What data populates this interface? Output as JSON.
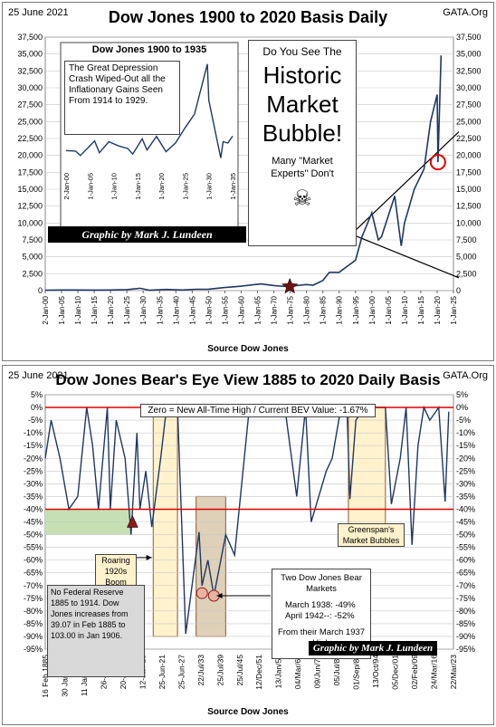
{
  "top": {
    "date": "25 June 2021",
    "site": "GATA.Org",
    "title": "Dow Jones 1900 to 2020 Basis Daily",
    "source": "Source Dow Jones",
    "credit": "Graphic by Mark J. Lundeen",
    "inset_title": "Dow Jones 1900 to 1935",
    "inset_note": "The Great Depression Crash Wiped-Out all the Inflationary Gains Seen From 1914 to 1929.",
    "callout": {
      "line1": "Do You See The",
      "line2": "Historic",
      "line3": "Market",
      "line4": "Bubble!",
      "line5": "Many \"Market Experts\"  Don't",
      "skull": "☠"
    }
  },
  "bottom": {
    "date": "25 June 2021",
    "site": "GATA.Org",
    "title": "Dow Jones Bear's Eye View 1885 to 2020 Daily Basis",
    "source": "Source Dow Jones",
    "credit": "Graphic by Mark J. Lundeen",
    "header_note": "Zero = New All-Time High / Current BEV Value: -1.67%",
    "roaring": "Roaring 1920s Boom",
    "greenspan": "Greenspan's Market Bubbles",
    "fed_note": "No Federal Reserve 1885 to 1914.  Dow Jones increases from 39.07 in Feb 1885 to 103.00 in Jan 1906.",
    "bear_title": "Two Dow Jones Bear Markets",
    "bear_line1": "March 1938:  -49%",
    "bear_line2": "April 1942--: -52%",
    "bear_line3": "From their March 1937 High"
  },
  "colors": {
    "series": "#1f3864",
    "panel_bg": "#fff2cc",
    "red": "#e00000",
    "shade": "#c8b08a",
    "green": "#c6e0b4",
    "grid": "#c8c8c8"
  },
  "chart_data": [
    {
      "type": "line",
      "title": "Dow Jones 1900 to 2020 Basis Daily",
      "xlabel": "Source Dow Jones",
      "ylim": [
        0,
        37500
      ],
      "y_ticks": [
        "0",
        "2,500",
        "5,000",
        "7,500",
        "10,000",
        "12,500",
        "15,000",
        "17,500",
        "20,000",
        "22,500",
        "25,000",
        "27,500",
        "30,000",
        "32,500",
        "35,000",
        "37,500"
      ],
      "x_ticks": [
        "2-Jan-00",
        "1-Jan-05",
        "1-Jan-10",
        "1-Jan-15",
        "1-Jan-20",
        "1-Jan-25",
        "1-Jan-30",
        "1-Jan-35",
        "1-Jan-40",
        "1-Jan-45",
        "1-Jan-50",
        "1-Jan-55",
        "1-Jan-60",
        "1-Jan-65",
        "1-Jan-70",
        "1-Jan-75",
        "1-Jan-80",
        "1-Jan-85",
        "1-Jan-90",
        "1-Jan-95",
        "1-Jan-00",
        "1-Jan-05",
        "1-Jan-10",
        "1-Jan-15",
        "1-Jan-20",
        "1-Jan-25"
      ],
      "series": [
        {
          "x": [
            1900,
            1905,
            1910,
            1915,
            1920,
            1925,
            1929,
            1932,
            1937,
            1942,
            1946,
            1950,
            1955,
            1960,
            1966,
            1970,
            1974,
            1980,
            1982,
            1985,
            1987,
            1990,
            1995,
            1997,
            2000,
            2002,
            2003,
            2007,
            2009,
            2010,
            2013,
            2016,
            2018,
            2020,
            2020.25,
            2021.2
          ],
          "y": [
            70,
            90,
            90,
            80,
            90,
            150,
            350,
            50,
            180,
            100,
            200,
            220,
            450,
            650,
            990,
            750,
            600,
            900,
            800,
            1500,
            2700,
            2700,
            4500,
            8000,
            11500,
            7500,
            8000,
            14000,
            6600,
            10000,
            15000,
            18000,
            25000,
            29000,
            19000,
            34800
          ]
        }
      ]
    },
    {
      "type": "line",
      "title": "Dow Jones 1900 to 1935",
      "ylim": [
        0,
        400
      ],
      "x_ticks": [
        "2-Jan-00",
        "1-Jan-05",
        "1-Jan-10",
        "1-Jan-15",
        "1-Jan-20",
        "1-Jan-25",
        "1-Jan-30",
        "1-Jan-35"
      ],
      "series": [
        {
          "x": [
            1900,
            1902,
            1903,
            1906,
            1907,
            1909,
            1911,
            1913,
            1914,
            1916,
            1917,
            1919,
            1921,
            1923,
            1925,
            1927,
            1929.7,
            1930,
            1932.5,
            1933,
            1934,
            1935
          ],
          "y": [
            68,
            66,
            50,
            103,
            60,
            100,
            85,
            75,
            55,
            110,
            70,
            119,
            64,
            95,
            150,
            200,
            381,
            250,
            41,
            100,
            95,
            120
          ]
        }
      ]
    },
    {
      "type": "area",
      "title": "Dow Jones Bear's Eye View 1885 to 2020 Daily Basis",
      "xlabel": "Source Dow Jones",
      "ylim": [
        -95,
        5
      ],
      "y_ticks": [
        "5%",
        "0%",
        "-5%",
        "-10%",
        "-15%",
        "-20%",
        "-25%",
        "-30%",
        "-35%",
        "-40%",
        "-45%",
        "-50%",
        "-55%",
        "-60%",
        "-65%",
        "-70%",
        "-75%",
        "-80%",
        "-85%",
        "-90%",
        "-95%"
      ],
      "x_ticks": [
        "16 Feb 1885",
        "30 Jan 1891",
        "11 Jan 1897",
        "26-Jan-03",
        "20-Jan-09",
        "12-Jan-15",
        "25-Jun-21",
        "25-Jun-27",
        "22/Jul/33",
        "25/Jul/39",
        "25/Jul/45",
        "12/Dec/51",
        "13/Jan/59",
        "04/Mar/66",
        "09/Jun/73",
        "05/Jul/80",
        "01/Sep/87",
        "13/Oct/94",
        "05/Dec/01",
        "02/Feb/09",
        "24/Mar/16",
        "22/Mar/23"
      ],
      "series": [
        {
          "x": [
            1885,
            1887,
            1890,
            1893,
            1896,
            1899,
            1901,
            1903,
            1906,
            1907,
            1909,
            1912,
            1914,
            1916,
            1917,
            1919,
            1921,
            1924,
            1926,
            1929.7,
            1932.5,
            1937,
            1938,
            1940,
            1942,
            1946,
            1949,
            1954,
            1962,
            1966,
            1970,
            1973,
            1974.9,
            1980,
            1982,
            1985,
            1987,
            1988,
            1990,
            1993,
            2000,
            2002,
            2005,
            2007,
            2009,
            2011,
            2013,
            2015,
            2018,
            2020.2,
            2021.4
          ],
          "y": [
            -20,
            -5,
            -20,
            -40,
            -35,
            0,
            -15,
            -40,
            0,
            -40,
            -5,
            -20,
            -50,
            -10,
            -40,
            -25,
            -47,
            -20,
            0,
            0,
            -89,
            -49,
            -70,
            -60,
            -74,
            -50,
            -58,
            0,
            0,
            0,
            -35,
            0,
            -45,
            -25,
            -20,
            0,
            0,
            -36,
            -5,
            0,
            0,
            -38,
            -20,
            0,
            -54,
            -15,
            0,
            -5,
            0,
            -37,
            -1.67
          ]
        }
      ]
    }
  ]
}
